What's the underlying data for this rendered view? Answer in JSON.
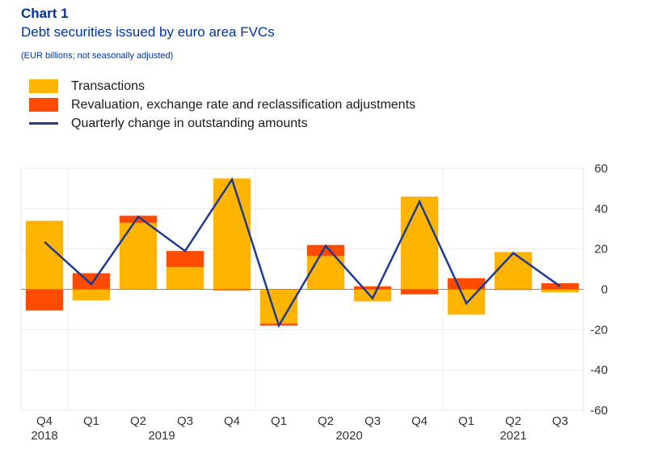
{
  "header": {
    "title": "Chart 1",
    "subtitle": "Debt securities issued by euro area FVCs",
    "units": "(EUR billions; not seasonally adjusted)"
  },
  "legend": {
    "items": [
      {
        "label": "Transactions",
        "color": "#FFB400"
      },
      {
        "label": "Revaluation, exchange rate and reclassification adjustments",
        "color": "#FF4B00"
      },
      {
        "label": "Quarterly change in outstanding amounts",
        "color": "#1F3A93"
      }
    ]
  },
  "chart_data": {
    "type": "bar",
    "categories": [
      "Q4",
      "Q1",
      "Q2",
      "Q3",
      "Q4",
      "Q1",
      "Q2",
      "Q3",
      "Q4",
      "Q1",
      "Q2",
      "Q3"
    ],
    "year_labels": [
      {
        "label": "2018",
        "span": [
          0,
          0
        ]
      },
      {
        "label": "2019",
        "span": [
          1,
          4
        ]
      },
      {
        "label": "2020",
        "span": [
          5,
          8
        ]
      },
      {
        "label": "2021",
        "span": [
          9,
          11
        ]
      }
    ],
    "series": [
      {
        "name": "Transactions",
        "kind": "bar",
        "color": "#FFB400",
        "values": [
          34,
          -5.5,
          33,
          11,
          55,
          -17,
          16.5,
          -6,
          46,
          -12.5,
          18.5,
          -1.5
        ]
      },
      {
        "name": "Revaluation, exchange rate and reclassification adjustments",
        "kind": "bar",
        "color": "#FF4B00",
        "values": [
          -10.5,
          8,
          3.5,
          8,
          -0.5,
          -1,
          5.5,
          1.5,
          -2.5,
          5.5,
          -0.3,
          3
        ]
      },
      {
        "name": "Quarterly change in outstanding amounts",
        "kind": "line",
        "color": "#1F3A93",
        "values": [
          23.5,
          2.5,
          36,
          19,
          54.5,
          -18,
          21.5,
          -4.5,
          43.5,
          -7,
          18,
          1.5
        ]
      }
    ],
    "ylim": [
      -60,
      60
    ],
    "yticks": [
      60,
      40,
      20,
      0,
      -20,
      -40,
      -60
    ],
    "y_axis_side": "right",
    "grid": true,
    "legend_position": "top-left"
  }
}
